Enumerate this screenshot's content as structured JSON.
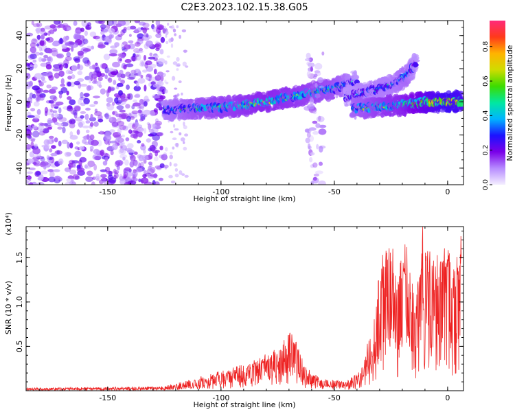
{
  "figure_title": "C2E3.2023.102.15.38.G05",
  "chart_data": [
    {
      "type": "heatmap",
      "xlabel": "Height of straight line (km)",
      "ylabel": "Frequency (Hz)",
      "xlim": [
        -186,
        7
      ],
      "ylim": [
        -50,
        49
      ],
      "x_ticks": [
        -150,
        -100,
        -50,
        0
      ],
      "y_ticks": [
        -40,
        -20,
        0,
        20,
        40
      ],
      "colorbar": {
        "label": "Normalized spectral amplitude",
        "range": [
          0.0,
          0.95
        ],
        "ticks": [
          "0.0",
          "0.2",
          "0.4",
          "0.6",
          "0.8"
        ],
        "colormap": [
          "#f4eeff",
          "#b78cff",
          "#7a00e8",
          "#1c12ff",
          "#00b4ff",
          "#00e8a0",
          "#3cdc00",
          "#cfdc00",
          "#ffb300",
          "#ff3a1a",
          "#ff2a7a"
        ]
      },
      "features": [
        {
          "component": "broadband noise",
          "x_range": [
            -186,
            -125
          ],
          "y_range": [
            -50,
            49
          ],
          "amplitude": 0.18
        },
        {
          "component": "main trend",
          "x": [
            -125,
            -110,
            -95,
            -80,
            -65,
            -50,
            -40
          ],
          "y": [
            -5,
            -4,
            -3,
            0,
            4,
            8,
            13
          ],
          "amplitude": [
            0.35,
            0.45,
            0.5,
            0.55,
            0.5,
            0.45,
            0.3
          ]
        },
        {
          "component": "upper branch",
          "x": [
            -45,
            -35,
            -25,
            -18,
            -14
          ],
          "y": [
            3,
            6,
            10,
            16,
            23
          ],
          "amplitude": [
            0.3,
            0.35,
            0.35,
            0.4,
            0.3
          ]
        },
        {
          "component": "near-zero band",
          "x": [
            -42,
            -30,
            -20,
            -10,
            0,
            6
          ],
          "y": [
            -4,
            -3,
            -2,
            0,
            0,
            0
          ],
          "amplitude": [
            0.4,
            0.5,
            0.55,
            0.7,
            0.85,
            0.8
          ]
        },
        {
          "component": "noise column",
          "x_range": [
            -62,
            -55
          ],
          "y_range": [
            -50,
            30
          ],
          "amplitude": 0.12
        }
      ]
    },
    {
      "type": "line",
      "xlabel": "Height of straight line (km)",
      "ylabel": "SNR (10 * v/v)",
      "y_multiplier": "(x10⁴)",
      "xlim": [
        -186,
        7
      ],
      "ylim": [
        0,
        18500
      ],
      "x_ticks": [
        -150,
        -100,
        -50,
        0
      ],
      "y_ticks": [
        5000,
        10000,
        15000
      ],
      "y_tick_labels": [
        "0.5",
        "1.0",
        "1.5"
      ],
      "series": [
        {
          "color": "#ee2222",
          "x": [
            -186,
            -150,
            -125,
            -115,
            -105,
            -95,
            -90,
            -85,
            -80,
            -76,
            -72,
            -69,
            -66,
            -63,
            -60,
            -55,
            -50,
            -45,
            -40,
            -37,
            -34,
            -32,
            -30,
            -28,
            -26,
            -24,
            -22,
            -20,
            -18,
            -16,
            -14,
            -12,
            -11,
            -10,
            -8,
            -6,
            -4,
            -2,
            0,
            2,
            4,
            6
          ],
          "y": [
            200,
            250,
            350,
            700,
            1200,
            1800,
            2000,
            2600,
            3000,
            3200,
            4400,
            5300,
            4000,
            2000,
            1500,
            900,
            800,
            800,
            1100,
            2500,
            4500,
            7500,
            10500,
            11000,
            12500,
            10500,
            9500,
            12000,
            13000,
            7500,
            8500,
            9800,
            18500,
            10000,
            11500,
            10500,
            11000,
            12000,
            14000,
            9500,
            12500,
            14500
          ],
          "peak_envelope": [
            350,
            400,
            500,
            1200,
            1900,
            2600,
            3000,
            3500,
            4200,
            4800,
            6000,
            6800,
            5200,
            2800,
            2100,
            1300,
            1200,
            1300,
            1900,
            3800,
            7000,
            12000,
            16000,
            15500,
            17000,
            16000,
            13500,
            16500,
            17500,
            13000,
            12000,
            14000,
            18500,
            15500,
            16500,
            15000,
            15500,
            16000,
            16500,
            14000,
            15500,
            16000
          ]
        }
      ]
    }
  ]
}
